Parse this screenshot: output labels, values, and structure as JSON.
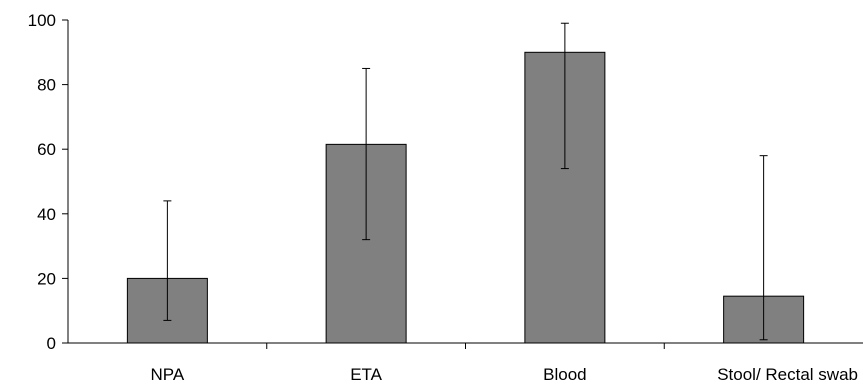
{
  "chart_data": {
    "type": "bar",
    "title": "",
    "xlabel": "",
    "ylabel": "",
    "categories": [
      "NPA",
      "ETA",
      "Blood",
      "Stool/ Rectal swab"
    ],
    "values": [
      20,
      61.5,
      90,
      14.5
    ],
    "error_low": [
      7,
      32,
      54,
      1
    ],
    "error_high": [
      44,
      85,
      99,
      58
    ],
    "ylim": [
      0,
      100
    ],
    "yticks": [
      0,
      20,
      40,
      60,
      80,
      100
    ],
    "ytick_labels": [
      "0",
      "20",
      "40",
      "60",
      "80",
      "100"
    ],
    "grid": false,
    "legend": "none",
    "bar_color": "#808080"
  }
}
